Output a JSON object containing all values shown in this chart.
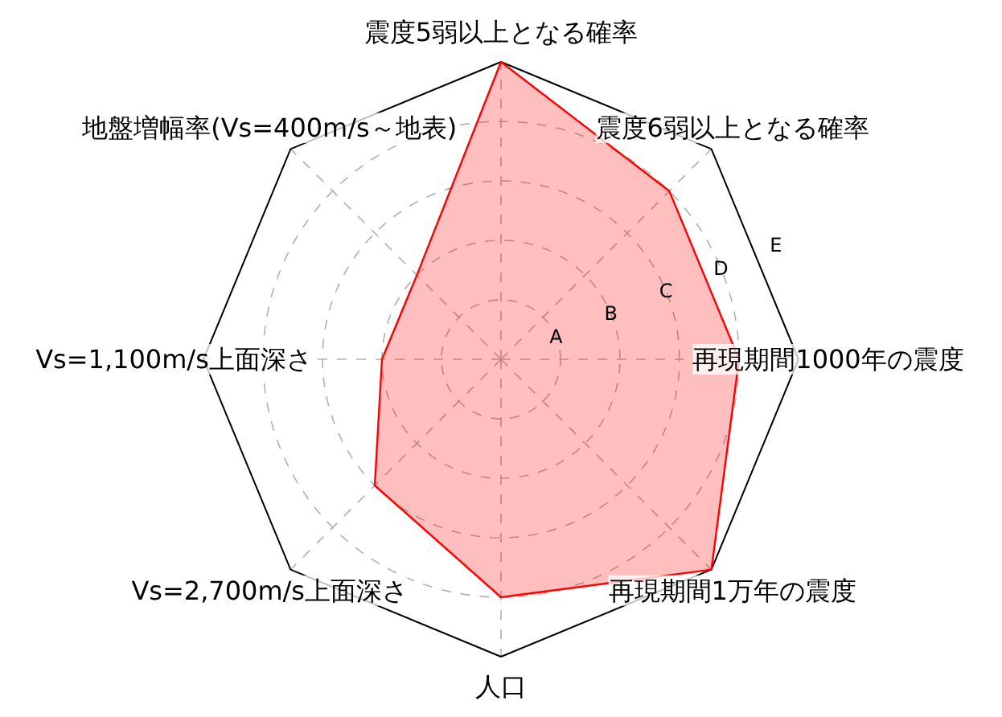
{
  "chart_data": {
    "type": "radar",
    "categories": [
      "震度5弱以上となる確率",
      "震度6弱以上となる確率",
      "再現期間1000年の震度",
      "再現期間1万年の震度",
      "人口",
      "Vs=2,700m/s上面深さ",
      "Vs=1,100m/s上面深さ",
      "地盤増幅率(Vs=400m/s～地表)"
    ],
    "series": [
      {
        "color": "#ff0000",
        "values": [
          5,
          4,
          4,
          5,
          4,
          3,
          2,
          2
        ]
      }
    ],
    "ylim": [
      0,
      5
    ],
    "yticks": [
      {
        "value": 1,
        "label": "A"
      },
      {
        "value": 2,
        "label": "B"
      },
      {
        "value": 3,
        "label": "C"
      },
      {
        "value": 4,
        "label": "D"
      },
      {
        "value": 5,
        "label": "E"
      }
    ],
    "grid": true,
    "marker": "none",
    "line_style": "solid"
  }
}
